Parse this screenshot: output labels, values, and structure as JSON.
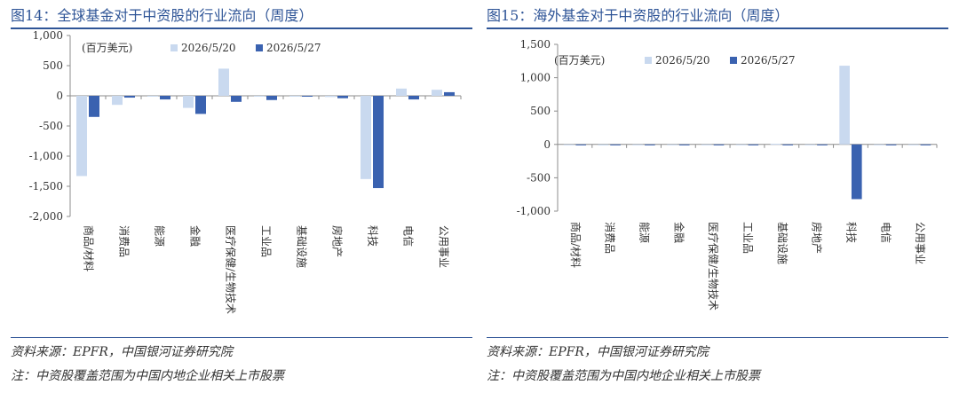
{
  "panels": [
    {
      "title": "图14：全球基金对于中资股的行业流向（周度）",
      "source": "资料来源：EPFR，中国银河证券研究院",
      "note": "注：中资股覆盖范围为中国内地企业相关上市股票"
    },
    {
      "title": "图15：海外基金对于中资股的行业流向（周度）",
      "source": "资料来源：EPFR，中国银河证券研究院",
      "note": "注：中资股覆盖范围为中国内地企业相关上市股票"
    }
  ],
  "colors": {
    "series1": "#c9d9ef",
    "series2": "#3a62b0",
    "axis": "#8c8c8c",
    "title": "#2f5597"
  },
  "chart_data": [
    {
      "type": "bar",
      "unit_label": "(百万美元)",
      "categories": [
        "商品/材料",
        "消费品",
        "能源",
        "金融",
        "医疗保健/生物技术",
        "工业品",
        "基础设施",
        "房地产",
        "科技",
        "电信",
        "公用事业"
      ],
      "series": [
        {
          "name": "2026/5/20",
          "values": [
            -1330,
            -150,
            -10,
            -200,
            450,
            -10,
            -5,
            -20,
            -1380,
            120,
            100
          ]
        },
        {
          "name": "2026/5/27",
          "values": [
            -350,
            -30,
            -60,
            -300,
            -100,
            -70,
            -10,
            -40,
            -1530,
            -60,
            60
          ]
        }
      ],
      "ylim": [
        -2000,
        1000
      ],
      "yticks": [
        1000,
        500,
        0,
        -500,
        -1000,
        -1500,
        -2000
      ],
      "ytick_labels": [
        "1,000",
        "500",
        "0",
        "-500",
        "-1,000",
        "-1,500",
        "-2,000"
      ],
      "legend": "top"
    },
    {
      "type": "bar",
      "unit_label": "(百万美元)",
      "categories": [
        "商品/材料",
        "消费品",
        "能源",
        "金融",
        "医疗保健/生物技术",
        "工业品",
        "基础设施",
        "房地产",
        "科技",
        "电信",
        "公用事业"
      ],
      "series": [
        {
          "name": "2026/5/20",
          "values": [
            -5,
            -15,
            -8,
            -5,
            -3,
            -5,
            10,
            -5,
            1180,
            -3,
            -3
          ]
        },
        {
          "name": "2026/5/27",
          "values": [
            -3,
            -5,
            -3,
            -3,
            -2,
            -3,
            -3,
            -2,
            -820,
            -2,
            -2
          ]
        }
      ],
      "ylim": [
        -1000,
        1500
      ],
      "yticks": [
        1500,
        1000,
        500,
        0,
        -500,
        -1000
      ],
      "ytick_labels": [
        "1,500",
        "1,000",
        "500",
        "0",
        "-500",
        "-1,000"
      ],
      "legend": "top"
    }
  ]
}
